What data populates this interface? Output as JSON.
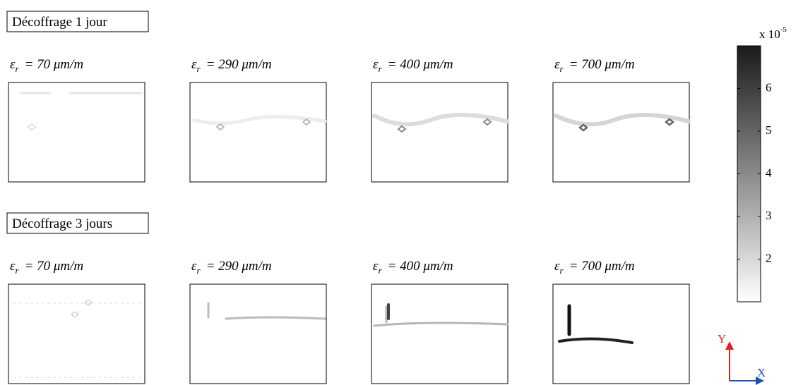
{
  "rows": [
    {
      "label": "Décoffrage 1 jour",
      "panels": [
        {
          "symbol": "ε",
          "subscript": "r",
          "equation": "= 70 μm/m"
        },
        {
          "symbol": "ε",
          "subscript": "r",
          "equation": "= 290 μm/m"
        },
        {
          "symbol": "ε",
          "subscript": "r",
          "equation": "= 400 μm/m"
        },
        {
          "symbol": "ε",
          "subscript": "r",
          "equation": "= 700 μm/m"
        }
      ]
    },
    {
      "label": "Décoffrage 3 jours",
      "panels": [
        {
          "symbol": "ε",
          "subscript": "r",
          "equation": "= 70 μm/m"
        },
        {
          "symbol": "ε",
          "subscript": "r",
          "equation": "= 290 μm/m"
        },
        {
          "symbol": "ε",
          "subscript": "r",
          "equation": "= 400 μm/m"
        },
        {
          "symbol": "ε",
          "subscript": "r",
          "equation": "= 700 μm/m"
        }
      ]
    }
  ],
  "colorbar": {
    "multiplier": "x 10",
    "exponent": "-5",
    "lim": [
      1,
      7
    ],
    "ticks": [
      2,
      3,
      4,
      5,
      6
    ]
  },
  "axes": {
    "y": "Y",
    "x": "X"
  }
}
